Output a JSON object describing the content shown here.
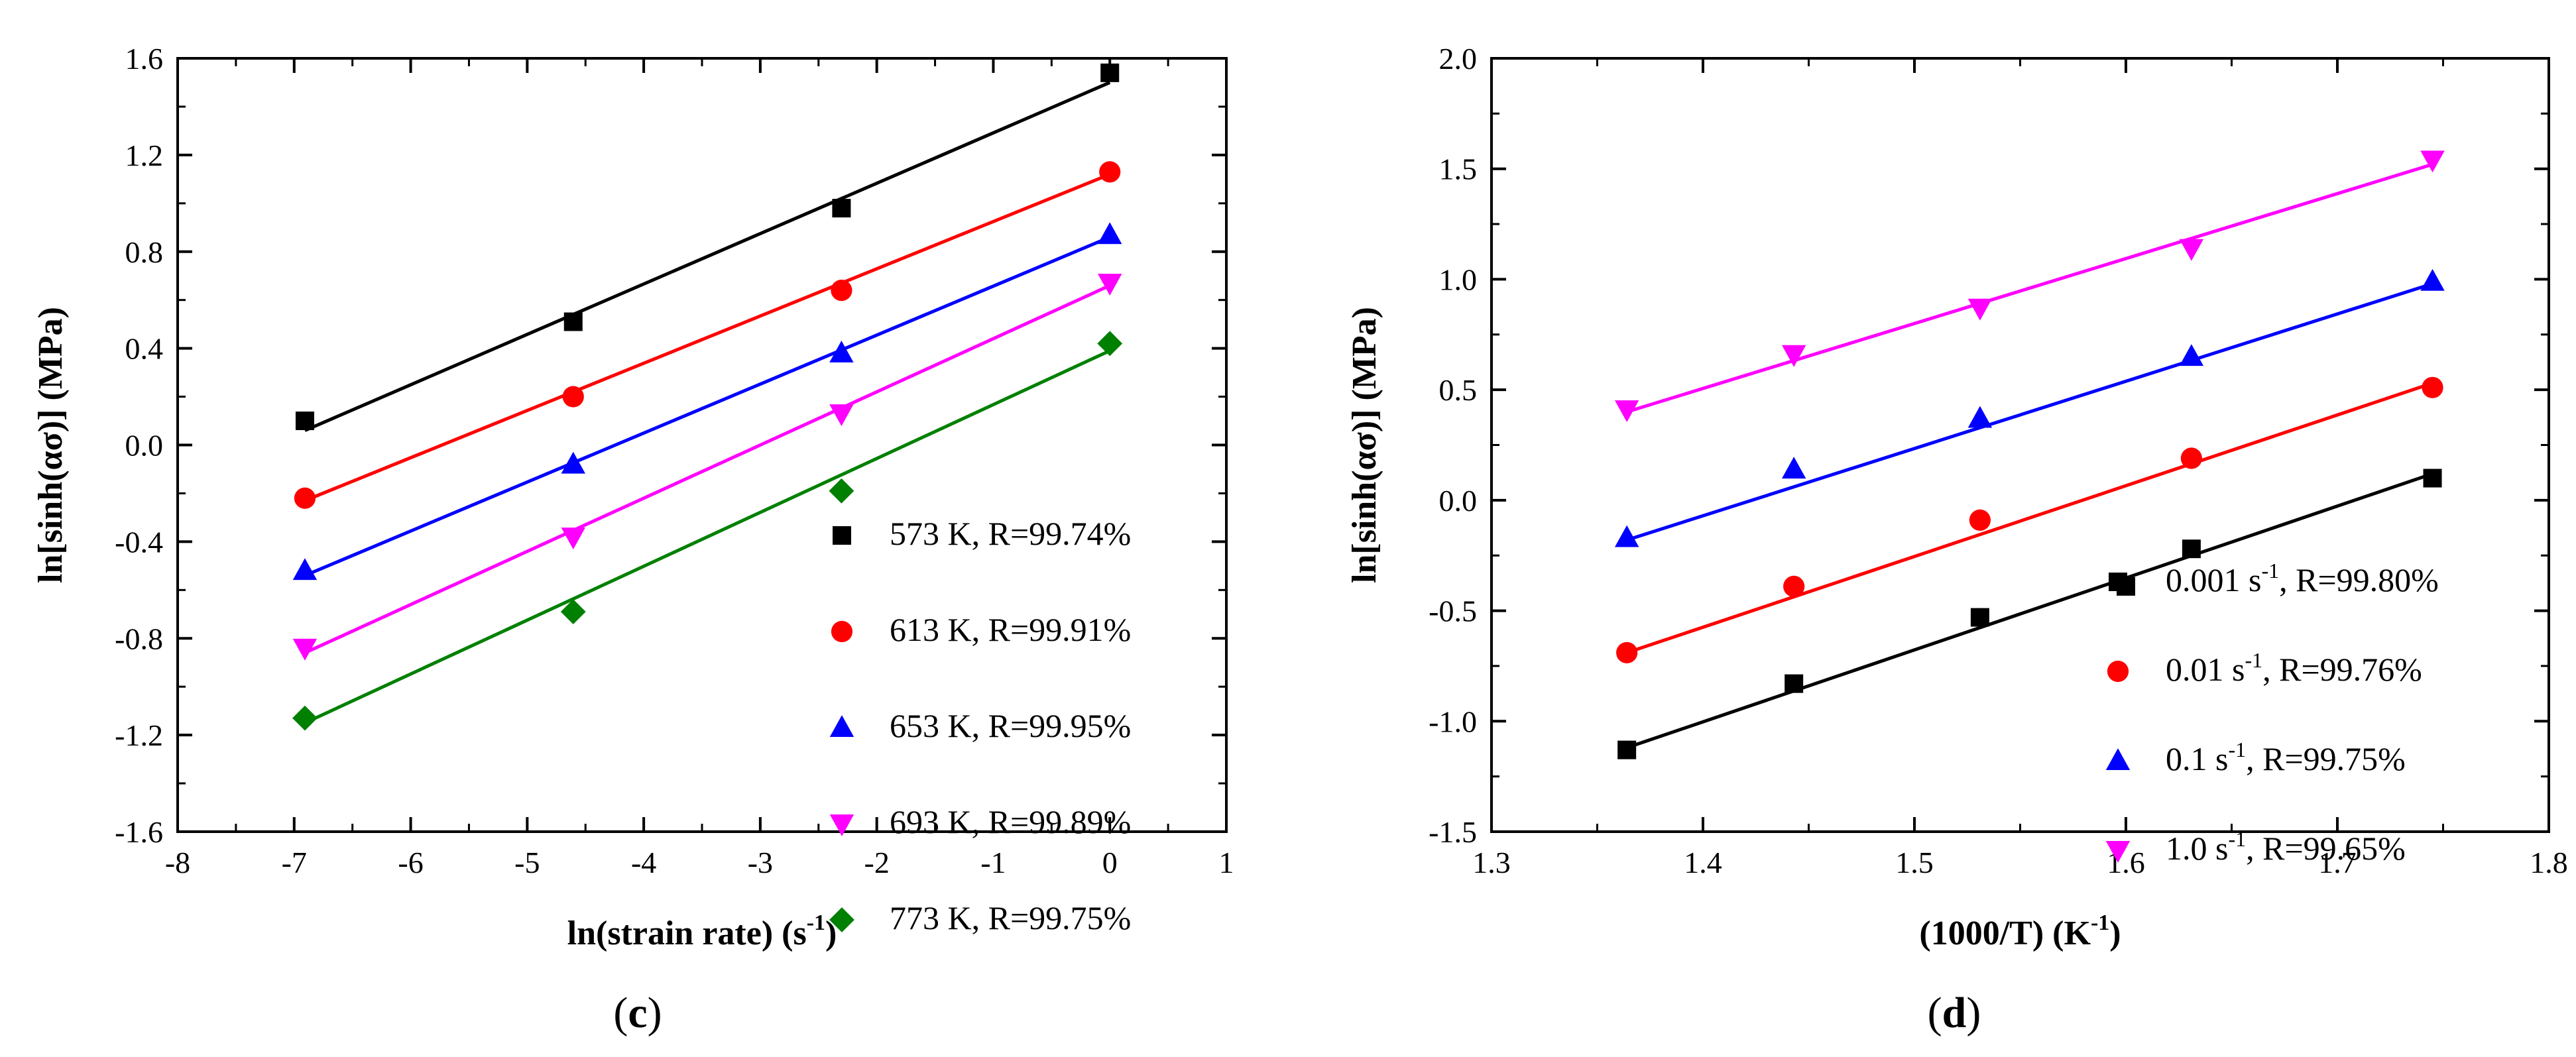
{
  "chart_data": [
    {
      "type": "scatter",
      "panel_label": "c",
      "xlabel": "ln(strain rate) (s",
      "xlabel_sup": "-1",
      "xlabel_end": ")",
      "ylabel": "ln[sinh(ασ)] (MPa)",
      "xlim": [
        -8,
        1
      ],
      "ylim": [
        -1.6,
        1.6
      ],
      "x_ticks": [
        -8,
        -7,
        -6,
        -5,
        -4,
        -3,
        -2,
        -1,
        0,
        1
      ],
      "y_ticks": [
        -1.6,
        -1.2,
        -0.8,
        -0.4,
        0.0,
        0.4,
        0.8,
        1.2,
        1.6
      ],
      "x_ticklabels": [
        "-8",
        "-7",
        "-6",
        "-5",
        "-4",
        "-3",
        "-2",
        "-1",
        "0",
        "1"
      ],
      "y_ticklabels": [
        "-1.6",
        "-1.2",
        "-0.8",
        "-0.4",
        "0.0",
        "0.4",
        "0.8",
        "1.2",
        "1.6"
      ],
      "legend_position": "bottom-right",
      "fit_lines": true,
      "series": [
        {
          "name": "573 K, R=99.74%",
          "label": "573 K, R=99.74%",
          "label_sup": "",
          "label_end": "",
          "marker": "square",
          "color": "#000000",
          "x": [
            -6.908,
            -4.605,
            -2.303,
            0.0
          ],
          "y": [
            0.1,
            0.51,
            0.98,
            1.54
          ],
          "fit": [
            0.06,
            1.5
          ]
        },
        {
          "name": "613 K, R=99.91%",
          "label": "613 K, R=99.91%",
          "label_sup": "",
          "label_end": "",
          "marker": "circle",
          "color": "#ff0000",
          "x": [
            -6.908,
            -4.605,
            -2.303,
            0.0
          ],
          "y": [
            -0.22,
            0.2,
            0.64,
            1.13
          ],
          "fit": [
            -0.23,
            1.12
          ]
        },
        {
          "name": "653 K, R=99.95%",
          "label": "653 K, R=99.95%",
          "label_sup": "",
          "label_end": "",
          "marker": "triangle-up",
          "color": "#0000ff",
          "x": [
            -6.908,
            -4.605,
            -2.303,
            0.0
          ],
          "y": [
            -0.52,
            -0.08,
            0.38,
            0.87
          ],
          "fit": [
            -0.54,
            0.86
          ]
        },
        {
          "name": "693 K, R=99.89%",
          "label": "693 K, R=99.89%",
          "label_sup": "",
          "label_end": "",
          "marker": "triangle-down",
          "color": "#ff00ff",
          "x": [
            -6.908,
            -4.605,
            -2.303,
            0.0
          ],
          "y": [
            -0.84,
            -0.38,
            0.13,
            0.67
          ],
          "fit": [
            -0.86,
            0.66
          ]
        },
        {
          "name": "773 K, R=99.75%",
          "label": "773 K, R=99.75%",
          "label_sup": "",
          "label_end": "",
          "marker": "diamond",
          "color": "#008000",
          "x": [
            -6.908,
            -4.605,
            -2.303,
            0.0
          ],
          "y": [
            -1.13,
            -0.69,
            -0.19,
            0.42
          ],
          "fit": [
            -1.15,
            0.39
          ]
        }
      ]
    },
    {
      "type": "scatter",
      "panel_label": "d",
      "xlabel": "(1000/T) (K",
      "xlabel_sup": "-1",
      "xlabel_end": ")",
      "ylabel": "ln[sinh(ασ)] (MPa)",
      "xlim": [
        1.3,
        1.8
      ],
      "ylim": [
        -1.5,
        2.0
      ],
      "x_ticks": [
        1.3,
        1.4,
        1.5,
        1.6,
        1.7,
        1.8
      ],
      "y_ticks": [
        -1.5,
        -1.0,
        -0.5,
        0.0,
        0.5,
        1.0,
        1.5,
        2.0
      ],
      "x_ticklabels": [
        "1.3",
        "1.4",
        "1.5",
        "1.6",
        "1.7",
        "1.8"
      ],
      "y_ticklabels": [
        "-1.5",
        "-1.0",
        "-0.5",
        "0.0",
        "0.5",
        "1.0",
        "1.5",
        "2.0"
      ],
      "legend_position": "bottom-right",
      "fit_lines": true,
      "series": [
        {
          "name": "0.001 s-1, R=99.80%",
          "label": "0.001 s",
          "label_sup": "-1",
          "label_end": ", R=99.80%",
          "marker": "square",
          "color": "#000000",
          "x": [
            1.364,
            1.443,
            1.531,
            1.6,
            1.631,
            1.745
          ],
          "y": [
            -1.13,
            -0.83,
            -0.53,
            -0.39,
            -0.22,
            0.1
          ],
          "fit": [
            -1.12,
            0.12
          ]
        },
        {
          "name": "0.01 s-1, R=99.76%",
          "label": "0.01 s",
          "label_sup": "-1",
          "label_end": ", R=99.76%",
          "marker": "circle",
          "color": "#ff0000",
          "x": [
            1.364,
            1.443,
            1.531,
            1.631,
            1.745
          ],
          "y": [
            -0.69,
            -0.39,
            -0.09,
            0.19,
            0.51
          ],
          "fit": [
            -0.69,
            0.53
          ]
        },
        {
          "name": "0.1 s-1, R=99.75%",
          "label": "0.1 s",
          "label_sup": "-1",
          "label_end": ", R=99.75%",
          "marker": "triangle-up",
          "color": "#0000ff",
          "x": [
            1.364,
            1.443,
            1.531,
            1.631,
            1.745
          ],
          "y": [
            -0.17,
            0.14,
            0.37,
            0.65,
            0.99
          ],
          "fit": [
            -0.18,
            0.98
          ]
        },
        {
          "name": "1.0 s-1, R=99.65%",
          "label": "1.0 s",
          "label_sup": "-1",
          "label_end": ", R=99.65%",
          "marker": "triangle-down",
          "color": "#ff00ff",
          "x": [
            1.364,
            1.443,
            1.531,
            1.631,
            1.745
          ],
          "y": [
            0.41,
            0.66,
            0.87,
            1.14,
            1.54
          ],
          "fit": [
            0.4,
            1.52
          ]
        }
      ]
    }
  ]
}
